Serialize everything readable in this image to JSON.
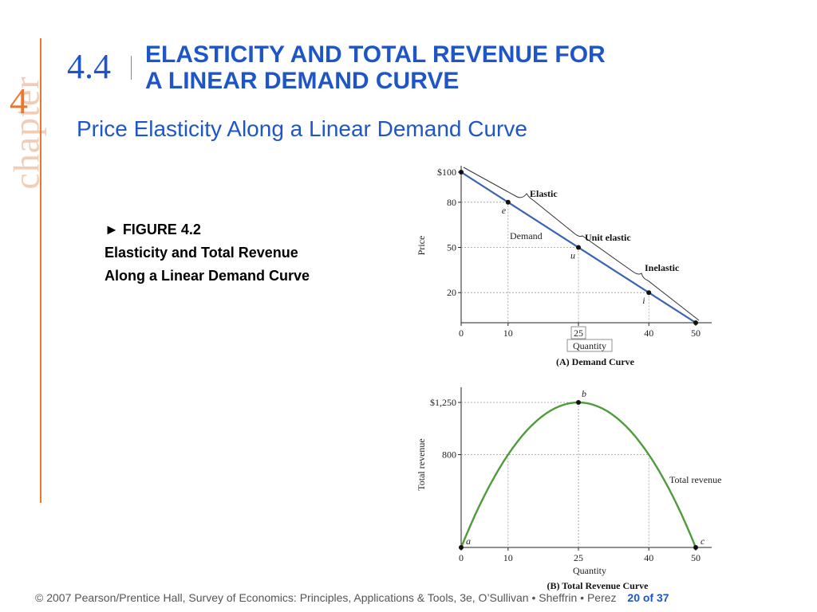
{
  "chapter": {
    "word": "chapter",
    "number": "4"
  },
  "section": {
    "number": "4.4",
    "title_line1": "ELASTICITY AND TOTAL REVENUE FOR",
    "title_line2": "A LINEAR DEMAND CURVE"
  },
  "subtitle": "Price Elasticity Along a Linear Demand Curve",
  "caption": {
    "line1": "► FIGURE 4.2",
    "line2": "Elasticity and Total Revenue",
    "line3": "Along a Linear Demand Curve"
  },
  "footer": {
    "text": "© 2007 Pearson/Prentice Hall, Survey of Economics: Principles, Applications & Tools, 3e, O’Sullivan • Sheffrin • Perez",
    "page": "20 of 37"
  },
  "colors": {
    "accent": "#1f56c7",
    "chapter_orange": "#e8782e",
    "demand_line": "#3a63b3",
    "revenue_line": "#4f9a3a"
  },
  "chart_data": [
    {
      "type": "line",
      "caption": "(A) Demand Curve",
      "xlabel": "Quantity",
      "ylabel": "Price",
      "x_ticks": [
        "0",
        "10",
        "25",
        "40",
        "50"
      ],
      "y_ticks": [
        "$100",
        "80",
        "50",
        "20"
      ],
      "xlim": [
        0,
        50
      ],
      "ylim": [
        0,
        100
      ],
      "series": [
        {
          "name": "Demand",
          "x": [
            0,
            50
          ],
          "y": [
            100,
            0
          ]
        }
      ],
      "points": [
        {
          "label": "e",
          "x": 10,
          "y": 80
        },
        {
          "label": "u",
          "x": 25,
          "y": 50
        },
        {
          "label": "i",
          "x": 40,
          "y": 20
        }
      ],
      "annotations": [
        "Elastic",
        "Unit elastic",
        "Inelastic"
      ]
    },
    {
      "type": "line",
      "caption": "(B) Total Revenue Curve",
      "xlabel": "Quantity",
      "ylabel": "Total revenue",
      "x_ticks": [
        "0",
        "10",
        "25",
        "40",
        "50"
      ],
      "y_ticks": [
        "$1,250",
        "800"
      ],
      "xlim": [
        0,
        50
      ],
      "ylim": [
        0,
        1250
      ],
      "series": [
        {
          "name": "Total revenue",
          "x": [
            0,
            10,
            25,
            40,
            50
          ],
          "y": [
            0,
            800,
            1250,
            800,
            0
          ]
        }
      ],
      "points": [
        {
          "label": "a",
          "x": 0,
          "y": 0
        },
        {
          "label": "b",
          "x": 25,
          "y": 1250
        },
        {
          "label": "c",
          "x": 50,
          "y": 0
        }
      ]
    }
  ]
}
